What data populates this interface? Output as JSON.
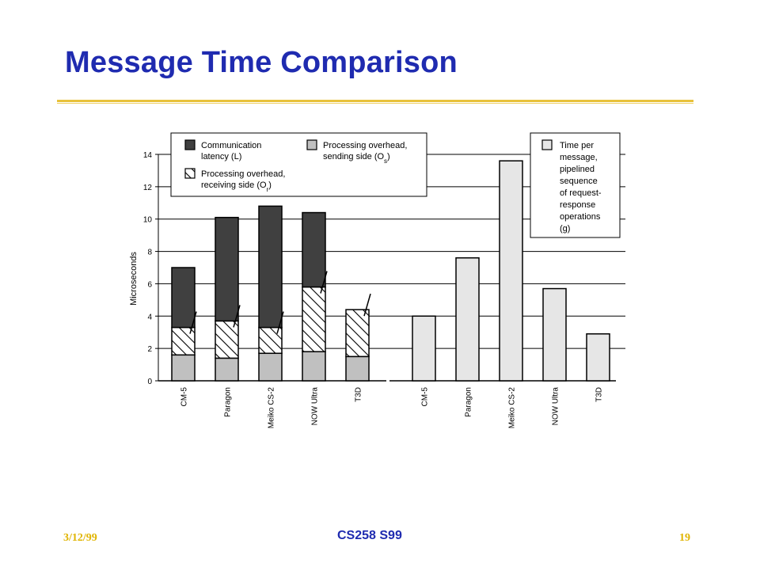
{
  "slide": {
    "title": "Message Time Comparison",
    "date": "3/12/99",
    "course": "CS258 S99",
    "page": "19",
    "title_color": "#1f2bb0",
    "rule_color": "#e8c23a"
  },
  "chart_data": [
    {
      "type": "bar",
      "stacked": true,
      "categories": [
        "CM-5",
        "Paragon",
        "Meiko CS-2",
        "NOW Ultra",
        "T3D"
      ],
      "series": [
        {
          "name": "Processing overhead, sending side (Os)",
          "values": [
            1.6,
            1.4,
            1.7,
            1.8,
            1.5
          ],
          "color": "#c0c0c0",
          "pattern": "solid"
        },
        {
          "name": "Processing overhead, receiving side (Or)",
          "values": [
            1.7,
            2.3,
            1.6,
            4.0,
            2.9
          ],
          "color": "#ffffff",
          "pattern": "hatched"
        },
        {
          "name": "Communication latency (L)",
          "values": [
            3.7,
            6.4,
            7.5,
            4.6,
            0.0
          ],
          "color": "#404040",
          "pattern": "solid"
        }
      ],
      "ylabel": "Microseconds",
      "ylim": [
        0,
        14
      ],
      "yticks": [
        0,
        2,
        4,
        6,
        8,
        10,
        12,
        14
      ],
      "grid": true,
      "legend": {
        "placement": "top-left",
        "items": [
          {
            "series": 2,
            "line1": "Communication",
            "line2": "latency (L)"
          },
          {
            "series": 0,
            "line1": "Processing overhead,",
            "line2": "sending side (O",
            "sub": "s",
            "close": ")"
          },
          {
            "series": 1,
            "line1": "Processing overhead,",
            "line2": "receiving side (O",
            "sub": "r",
            "close": ")"
          }
        ]
      }
    },
    {
      "type": "bar",
      "categories": [
        "CM-5",
        "Paragon",
        "Meiko CS-2",
        "NOW Ultra",
        "T3D"
      ],
      "series": [
        {
          "name": "Time per message, pipelined sequence of request-response operations (g)",
          "values": [
            4.0,
            7.6,
            13.6,
            5.7,
            2.9
          ],
          "color": "#e6e6e6"
        }
      ],
      "ylim": [
        0,
        14
      ],
      "legend": {
        "placement": "top-right",
        "lines": [
          "Time per",
          "message,",
          "pipelined",
          "sequence",
          "of request-",
          "response",
          "operations",
          "(g)"
        ]
      }
    }
  ]
}
